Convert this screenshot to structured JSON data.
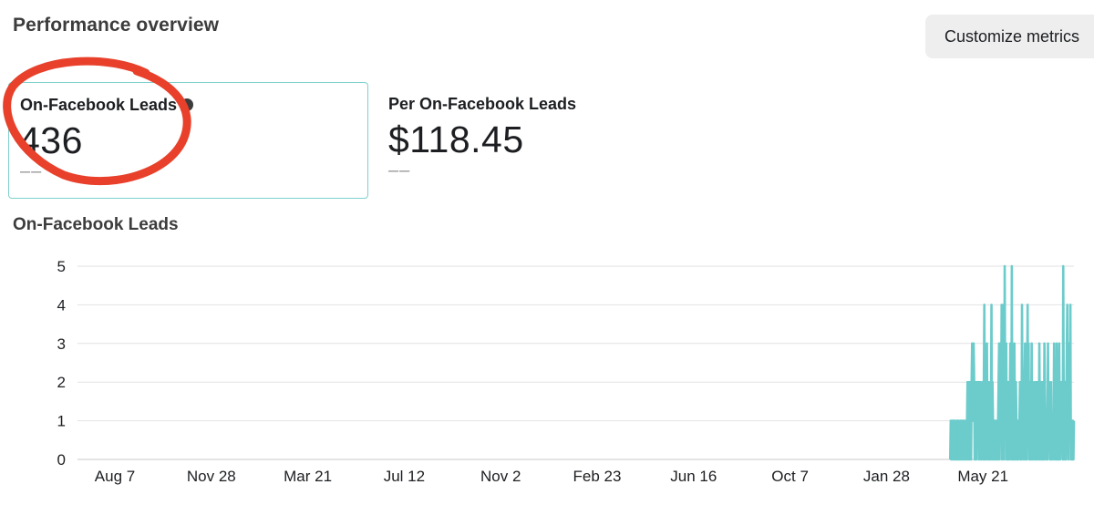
{
  "header": {
    "title": "Performance overview",
    "customize_label": "Customize metrics"
  },
  "metrics": [
    {
      "label": "On-Facebook Leads",
      "value": "436",
      "comparison": "––",
      "selected": true,
      "info_icon": "info-icon"
    },
    {
      "label": "Per On-Facebook Leads",
      "value": "$118.45",
      "comparison": "––",
      "selected": false
    }
  ],
  "annotation": {
    "shape": "hand-drawn ellipse",
    "color": "#e8402a"
  },
  "chart_data": {
    "type": "line",
    "title": "On-Facebook Leads",
    "xlabel": "",
    "ylabel": "",
    "ylim": [
      0,
      5
    ],
    "yticks": [
      0,
      1,
      2,
      3,
      4,
      5
    ],
    "xticks": [
      "Aug 7",
      "Nov 28",
      "Mar 21",
      "Jul 12",
      "Nov 2",
      "Feb 23",
      "Jun 16",
      "Oct 7",
      "Jan 28",
      "May 21"
    ],
    "tick_interval_days": 112,
    "grid": true,
    "legend": "none",
    "series": [
      {
        "color": "#6ccbcb",
        "start_offset_days": 970,
        "values": [
          0,
          1,
          0,
          1,
          0,
          1,
          1,
          0,
          1,
          0,
          1,
          0,
          0,
          1,
          0,
          1,
          0,
          1,
          0,
          0,
          1,
          0,
          1,
          1,
          0,
          1,
          0,
          1,
          1,
          0,
          0,
          1,
          0,
          1,
          2,
          0,
          1,
          2,
          0,
          2,
          1,
          0,
          2,
          3,
          1,
          2,
          3,
          2,
          0,
          2,
          1,
          0,
          2,
          1,
          2,
          2,
          0,
          2,
          1,
          2,
          0,
          0,
          1,
          2,
          1,
          0,
          2,
          4,
          0,
          1,
          0,
          2,
          3,
          1,
          0,
          2,
          1,
          0,
          0,
          2,
          1,
          4,
          0,
          2,
          1,
          0,
          1,
          0,
          1,
          1,
          0,
          1,
          0,
          0,
          1,
          2,
          3,
          0,
          2,
          3,
          1,
          4,
          0,
          2,
          1,
          4,
          0,
          5,
          1,
          2,
          3,
          0,
          1,
          0,
          2,
          1,
          0,
          1,
          3,
          2,
          0,
          5,
          0,
          1,
          2,
          0,
          3,
          1,
          0,
          2,
          1,
          0,
          0,
          1,
          0,
          1,
          1,
          2,
          0,
          1,
          0,
          4,
          1,
          2,
          0,
          1,
          2,
          3,
          0,
          1,
          0,
          2,
          4,
          1,
          3,
          0,
          1,
          2,
          0,
          1,
          3,
          0,
          2,
          1,
          1,
          0,
          2,
          1,
          0,
          2,
          0,
          1,
          2,
          2,
          0,
          3,
          1,
          0,
          2,
          1,
          0,
          2,
          0,
          1,
          0,
          3,
          2,
          1,
          0,
          1,
          1,
          0,
          3,
          1,
          2,
          1,
          0,
          1,
          2,
          0,
          1,
          0,
          1,
          1,
          3,
          0,
          1,
          2,
          0,
          3,
          2,
          0,
          1,
          0,
          3,
          1,
          0,
          1,
          2,
          1,
          1,
          0,
          5,
          1,
          0,
          1,
          2,
          0,
          1,
          3,
          4,
          1,
          0,
          3,
          2,
          1,
          4,
          0,
          1,
          1,
          0,
          1,
          0,
          1
        ]
      }
    ]
  }
}
